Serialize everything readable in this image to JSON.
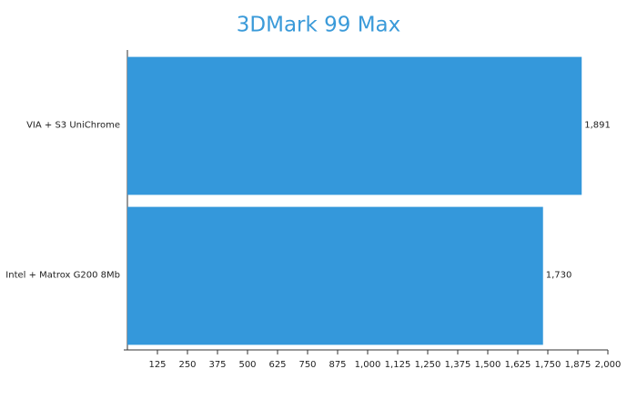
{
  "chart_data": {
    "type": "bar",
    "orientation": "horizontal",
    "title": "3DMark 99 Max",
    "categories": [
      "VIA + S3 UniChrome",
      "Intel + Matrox G200 8Mb"
    ],
    "values": [
      1891,
      1730
    ],
    "value_labels": [
      "1,891",
      "1,730"
    ],
    "color": "#3498db",
    "xlim": [
      0,
      2000
    ],
    "xticks": [
      125,
      250,
      375,
      500,
      625,
      750,
      875,
      {
        "value": 1000,
        "label": "1,000"
      },
      {
        "value": 1125,
        "label": "1,125"
      },
      {
        "value": 1250,
        "label": "1,250"
      },
      {
        "value": 1375,
        "label": "1,375"
      },
      {
        "value": 1500,
        "label": "1,500"
      },
      {
        "value": 1625,
        "label": "1,625"
      },
      {
        "value": 1750,
        "label": "1,750"
      },
      {
        "value": 1875,
        "label": "1,875"
      },
      {
        "value": 2000,
        "label": "2,000"
      }
    ],
    "grid": false
  }
}
